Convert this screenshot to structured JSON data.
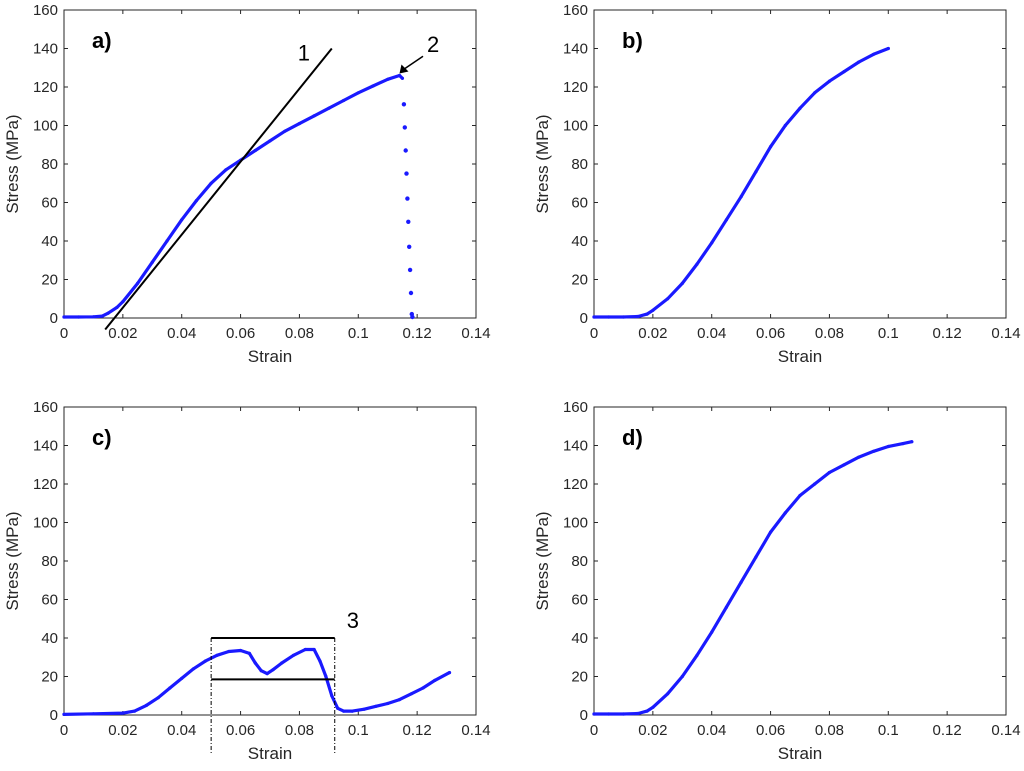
{
  "chart_data": [
    {
      "panel": "a)",
      "type": "scatter",
      "xlabel": "Strain",
      "ylabel": "Stress (MPa)",
      "xlim": [
        0,
        0.14
      ],
      "ylim": [
        0,
        160
      ],
      "xticks": [
        "0",
        "0.02",
        "0.04",
        "0.06",
        "0.08",
        "0.1",
        "0.12",
        "0.14"
      ],
      "yticks": [
        "0",
        "20",
        "40",
        "60",
        "80",
        "100",
        "120",
        "140",
        "160"
      ],
      "grid": false,
      "color": "#1a1aff",
      "series": [
        {
          "x": [
            0,
            0.005,
            0.01,
            0.013,
            0.015,
            0.018,
            0.02,
            0.025,
            0.03,
            0.035,
            0.04,
            0.045,
            0.05,
            0.055,
            0.06,
            0.065,
            0.07,
            0.075,
            0.08,
            0.085,
            0.09,
            0.095,
            0.1,
            0.105,
            0.11,
            0.114,
            0.115
          ],
          "y": [
            0.5,
            0.5,
            0.6,
            1.0,
            2.5,
            5.5,
            8.5,
            18,
            29,
            40,
            51,
            61,
            70,
            77,
            82,
            87,
            92,
            97,
            101,
            105,
            109,
            113,
            117,
            120.5,
            124,
            126,
            124.5
          ]
        },
        {
          "x": [
            0.1155,
            0.1158,
            0.1161,
            0.1164,
            0.1167,
            0.117,
            0.1173,
            0.1176,
            0.1179,
            0.1182,
            0.1184
          ],
          "y": [
            111,
            99,
            87,
            75,
            62,
            50,
            37,
            25,
            13,
            2,
            0.5
          ]
        }
      ],
      "annotations": [
        {
          "label": "1",
          "kind": "tangent-line",
          "x": [
            0.014,
            0.091
          ],
          "y": [
            -6,
            140
          ]
        },
        {
          "label": "2",
          "kind": "arrow",
          "from": [
            0.122,
            136
          ],
          "to": [
            0.114,
            127
          ]
        }
      ]
    },
    {
      "panel": "b)",
      "type": "line",
      "xlabel": "Strain",
      "ylabel": "Stress (MPa)",
      "xlim": [
        0,
        0.14
      ],
      "ylim": [
        0,
        160
      ],
      "xticks": [
        "0",
        "0.02",
        "0.04",
        "0.06",
        "0.08",
        "0.1",
        "0.12",
        "0.14"
      ],
      "yticks": [
        "0",
        "20",
        "40",
        "60",
        "80",
        "100",
        "120",
        "140",
        "160"
      ],
      "grid": false,
      "color": "#1a1aff",
      "series": [
        {
          "x": [
            0,
            0.005,
            0.01,
            0.015,
            0.018,
            0.02,
            0.025,
            0.03,
            0.035,
            0.04,
            0.045,
            0.05,
            0.055,
            0.06,
            0.065,
            0.07,
            0.075,
            0.08,
            0.085,
            0.09,
            0.095,
            0.1
          ],
          "y": [
            0.5,
            0.5,
            0.5,
            0.8,
            2,
            4,
            10,
            18,
            28,
            39,
            51,
            63,
            76,
            89,
            100,
            109,
            117,
            123,
            128,
            133,
            137,
            140
          ]
        }
      ],
      "annotations": []
    },
    {
      "panel": "c)",
      "type": "line",
      "xlabel": "Strain",
      "ylabel": "Stress (MPa)",
      "xlim": [
        0,
        0.14
      ],
      "ylim": [
        0,
        160
      ],
      "xticks": [
        "0",
        "0.02",
        "0.04",
        "0.06",
        "0.08",
        "0.1",
        "0.12",
        "0.14"
      ],
      "yticks": [
        "0",
        "20",
        "40",
        "60",
        "80",
        "100",
        "120",
        "140",
        "160"
      ],
      "grid": false,
      "color": "#1a1aff",
      "series": [
        {
          "x": [
            0,
            0.01,
            0.02,
            0.024,
            0.028,
            0.032,
            0.036,
            0.04,
            0.044,
            0.048,
            0.052,
            0.056,
            0.06,
            0.063,
            0.065,
            0.067,
            0.069,
            0.071,
            0.074,
            0.078,
            0.082,
            0.085,
            0.087,
            0.089,
            0.091,
            0.093,
            0.095,
            0.098,
            0.102,
            0.106,
            0.11,
            0.114,
            0.118,
            0.122,
            0.126,
            0.131
          ],
          "y": [
            0.3,
            0.6,
            1,
            2,
            5,
            9,
            14,
            19,
            24,
            28,
            31,
            33,
            33.5,
            32,
            27,
            23,
            21.5,
            23.5,
            27,
            31,
            34,
            34,
            28,
            20,
            10,
            3.5,
            2,
            2,
            3,
            4.5,
            6,
            8,
            11,
            14,
            18,
            22
          ]
        }
      ],
      "annotations": [
        {
          "label": "3",
          "kind": "bracket",
          "x": [
            0.05,
            0.092
          ],
          "y_top": 40,
          "y_bottom": 18.5
        }
      ]
    },
    {
      "panel": "d)",
      "type": "line",
      "xlabel": "Strain",
      "ylabel": "Stress (MPa)",
      "xlim": [
        0,
        0.14
      ],
      "ylim": [
        0,
        160
      ],
      "xticks": [
        "0",
        "0.02",
        "0.04",
        "0.06",
        "0.08",
        "0.1",
        "0.12",
        "0.14"
      ],
      "yticks": [
        "0",
        "20",
        "40",
        "60",
        "80",
        "100",
        "120",
        "140",
        "160"
      ],
      "grid": false,
      "color": "#1a1aff",
      "series": [
        {
          "x": [
            0,
            0.005,
            0.01,
            0.015,
            0.018,
            0.02,
            0.025,
            0.03,
            0.035,
            0.04,
            0.045,
            0.05,
            0.055,
            0.06,
            0.065,
            0.07,
            0.075,
            0.08,
            0.085,
            0.09,
            0.095,
            0.1,
            0.105,
            0.108
          ],
          "y": [
            0.5,
            0.5,
            0.5,
            0.8,
            2,
            4,
            11,
            20,
            31,
            43,
            56,
            69,
            82,
            95,
            105,
            114,
            120,
            126,
            130,
            134,
            137,
            139.5,
            141,
            142
          ]
        }
      ],
      "annotations": []
    }
  ]
}
